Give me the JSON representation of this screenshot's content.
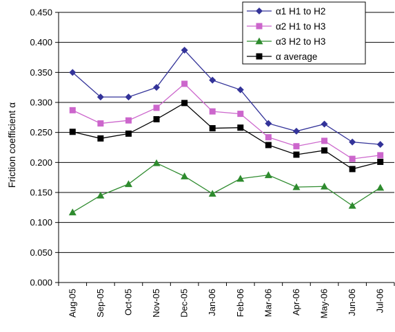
{
  "chart_data": {
    "type": "line",
    "title": "",
    "xlabel": "",
    "ylabel": "Friction coefficient α",
    "ylim": [
      0,
      0.45
    ],
    "yticks": [
      "0.000",
      "0.050",
      "0.100",
      "0.150",
      "0.200",
      "0.250",
      "0.300",
      "0.350",
      "0.400",
      "0.450"
    ],
    "grid": "horizontal",
    "legend_position": "top-right",
    "categories": [
      "Aug-05",
      "Sep-05",
      "Oct-05",
      "Nov-05",
      "Dec-05",
      "Jan-06",
      "Feb-06",
      "Mar-06",
      "Apr-06",
      "May-06",
      "Jun-06",
      "Jul-06"
    ],
    "series": [
      {
        "name": "α1 H1 to H2",
        "color": "#333399",
        "marker": "diamond",
        "values": [
          0.35,
          0.309,
          0.309,
          0.325,
          0.387,
          0.337,
          0.321,
          0.265,
          0.252,
          0.264,
          0.234,
          0.23
        ]
      },
      {
        "name": "α2 H1 to H3",
        "color": "#cc66cc",
        "marker": "square",
        "values": [
          0.287,
          0.265,
          0.27,
          0.291,
          0.331,
          0.285,
          0.281,
          0.242,
          0.227,
          0.236,
          0.206,
          0.212
        ]
      },
      {
        "name": "α3 H2 to H3",
        "color": "#2e8b2e",
        "marker": "triangle",
        "values": [
          0.117,
          0.145,
          0.164,
          0.199,
          0.177,
          0.148,
          0.173,
          0.179,
          0.159,
          0.16,
          0.128,
          0.158
        ]
      },
      {
        "name": "α average",
        "color": "#000000",
        "marker": "square",
        "values": [
          0.251,
          0.24,
          0.248,
          0.272,
          0.299,
          0.257,
          0.258,
          0.229,
          0.213,
          0.22,
          0.189,
          0.201
        ]
      }
    ]
  }
}
